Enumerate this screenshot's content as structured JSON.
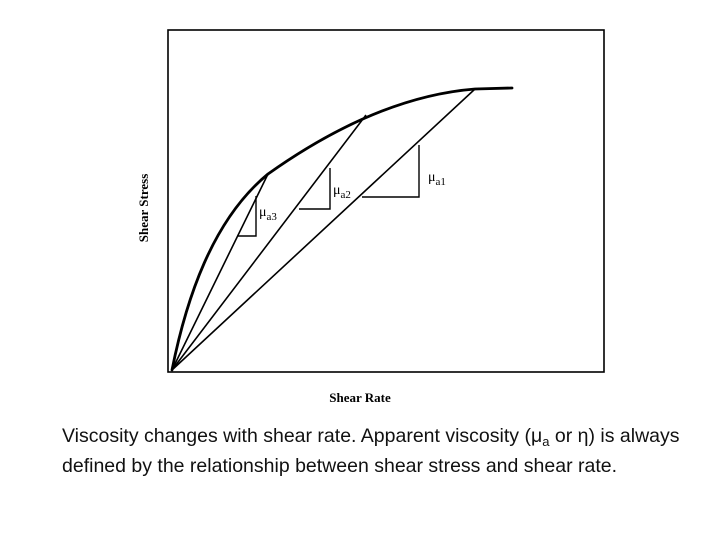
{
  "diagram": {
    "xlabel": "Shear Rate",
    "ylabel": "Shear Stress",
    "slopes": [
      {
        "symbol": "μ",
        "sub": "a1"
      },
      {
        "symbol": "μ",
        "sub": "a2"
      },
      {
        "symbol": "μ",
        "sub": "a3"
      }
    ]
  },
  "caption": {
    "part1": "Viscosity changes with shear rate.  Apparent viscosity (",
    "mu": "μ",
    "mu_sub": "a",
    "part2": " or ",
    "eta": "η",
    "part3": ") is always defined by the relationship between shear stress and shear rate."
  }
}
